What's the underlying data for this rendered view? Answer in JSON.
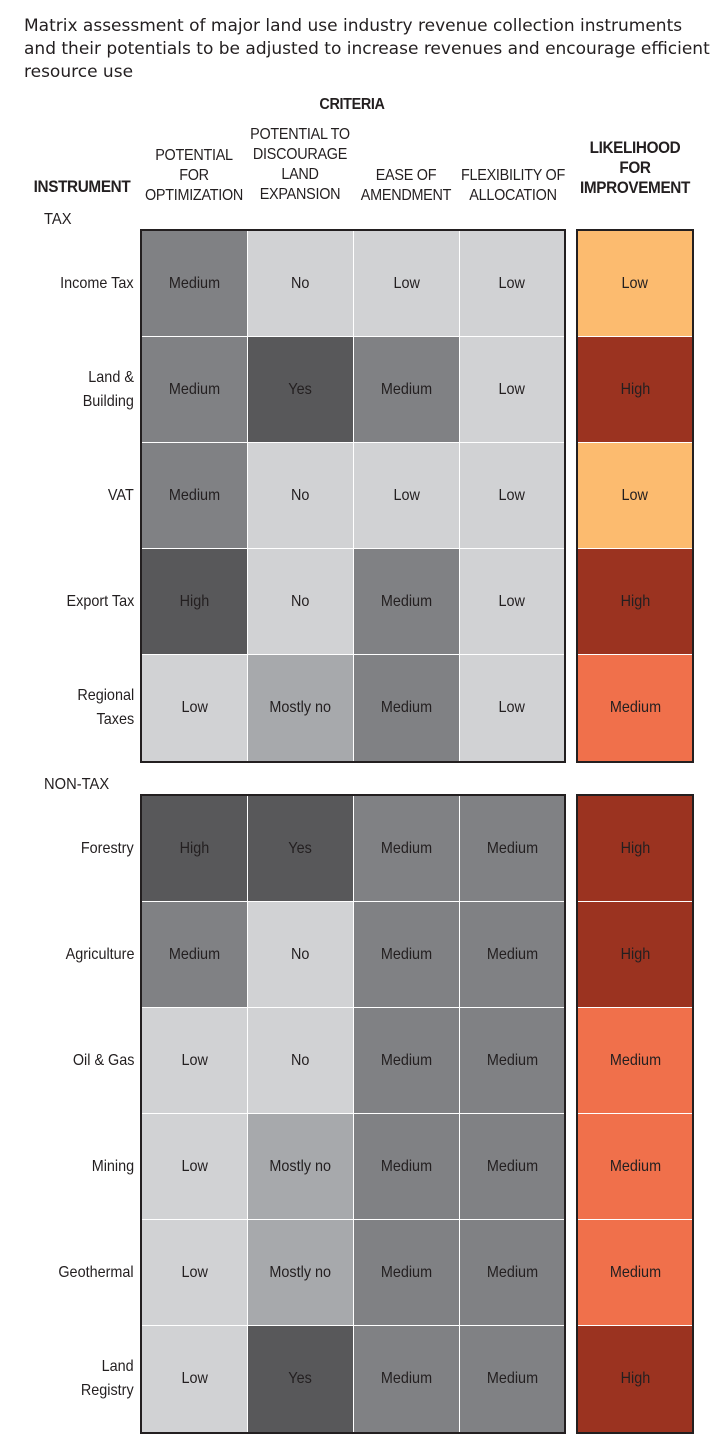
{
  "title": "Matrix assessment of major land use industry revenue collection instruments and their potentials to be adjusted to increase revenues and encourage efficient resource use",
  "headers": {
    "criteria": "CRITERIA",
    "instrument": "INSTRUMENT",
    "col1": [
      "POTENTIAL",
      "FOR",
      "OPTIMIZATION"
    ],
    "col2": [
      "POTENTIAL TO",
      "DISCOURAGE",
      "LAND",
      "EXPANSION"
    ],
    "col3": [
      "EASE OF",
      "AMENDMENT"
    ],
    "col4": [
      "FLEXIBILITY OF",
      "ALLOCATION"
    ],
    "likelihood": [
      "LIKELIHOOD",
      "FOR",
      "IMPROVEMENT"
    ]
  },
  "colors": {
    "Low_grey": "#d1d2d4",
    "Medium_grey": "#808184",
    "High_grey": "#58585a",
    "Yes": "#58585a",
    "No": "#d1d2d4",
    "Mostly no": "#a7a9ac",
    "Low_likely": "#fcbb6f",
    "Medium_likely": "#f0704b",
    "High_likely": "#9b3320"
  },
  "chart_data": {
    "type": "table",
    "title": "Matrix assessment of major land use industry revenue collection instruments and their potentials to be adjusted to increase revenues and encourage efficient resource use",
    "columns": [
      "POTENTIAL FOR OPTIMIZATION",
      "POTENTIAL TO DISCOURAGE LAND EXPANSION",
      "EASE OF AMENDMENT",
      "FLEXIBILITY OF ALLOCATION",
      "LIKELIHOOD FOR IMPROVEMENT"
    ],
    "sections": [
      {
        "name": "TAX",
        "rows": [
          {
            "instrument": [
              "Income Tax"
            ],
            "values": [
              "Medium",
              "No",
              "Low",
              "Low"
            ],
            "likelihood": "Low"
          },
          {
            "instrument": [
              "Land &",
              "Building"
            ],
            "values": [
              "Medium",
              "Yes",
              "Medium",
              "Low"
            ],
            "likelihood": "High"
          },
          {
            "instrument": [
              "VAT"
            ],
            "values": [
              "Medium",
              "No",
              "Low",
              "Low"
            ],
            "likelihood": "Low"
          },
          {
            "instrument": [
              "Export Tax"
            ],
            "values": [
              "High",
              "No",
              "Medium",
              "Low"
            ],
            "likelihood": "High"
          },
          {
            "instrument": [
              "Regional",
              "Taxes"
            ],
            "values": [
              "Low",
              "Mostly no",
              "Medium",
              "Low"
            ],
            "likelihood": "Medium"
          }
        ]
      },
      {
        "name": "NON-TAX",
        "rows": [
          {
            "instrument": [
              "Forestry"
            ],
            "values": [
              "High",
              "Yes",
              "Medium",
              "Medium"
            ],
            "likelihood": "High"
          },
          {
            "instrument": [
              "Agriculture"
            ],
            "values": [
              "Medium",
              "No",
              "Medium",
              "Medium"
            ],
            "likelihood": "High"
          },
          {
            "instrument": [
              "Oil & Gas"
            ],
            "values": [
              "Low",
              "No",
              "Medium",
              "Medium"
            ],
            "likelihood": "Medium"
          },
          {
            "instrument": [
              "Mining"
            ],
            "values": [
              "Low",
              "Mostly no",
              "Medium",
              "Medium"
            ],
            "likelihood": "Medium"
          },
          {
            "instrument": [
              "Geothermal"
            ],
            "values": [
              "Low",
              "Mostly no",
              "Medium",
              "Medium"
            ],
            "likelihood": "Medium"
          },
          {
            "instrument": [
              "Land",
              "Registry"
            ],
            "values": [
              "Low",
              "Yes",
              "Medium",
              "Medium"
            ],
            "likelihood": "High"
          }
        ]
      }
    ]
  }
}
